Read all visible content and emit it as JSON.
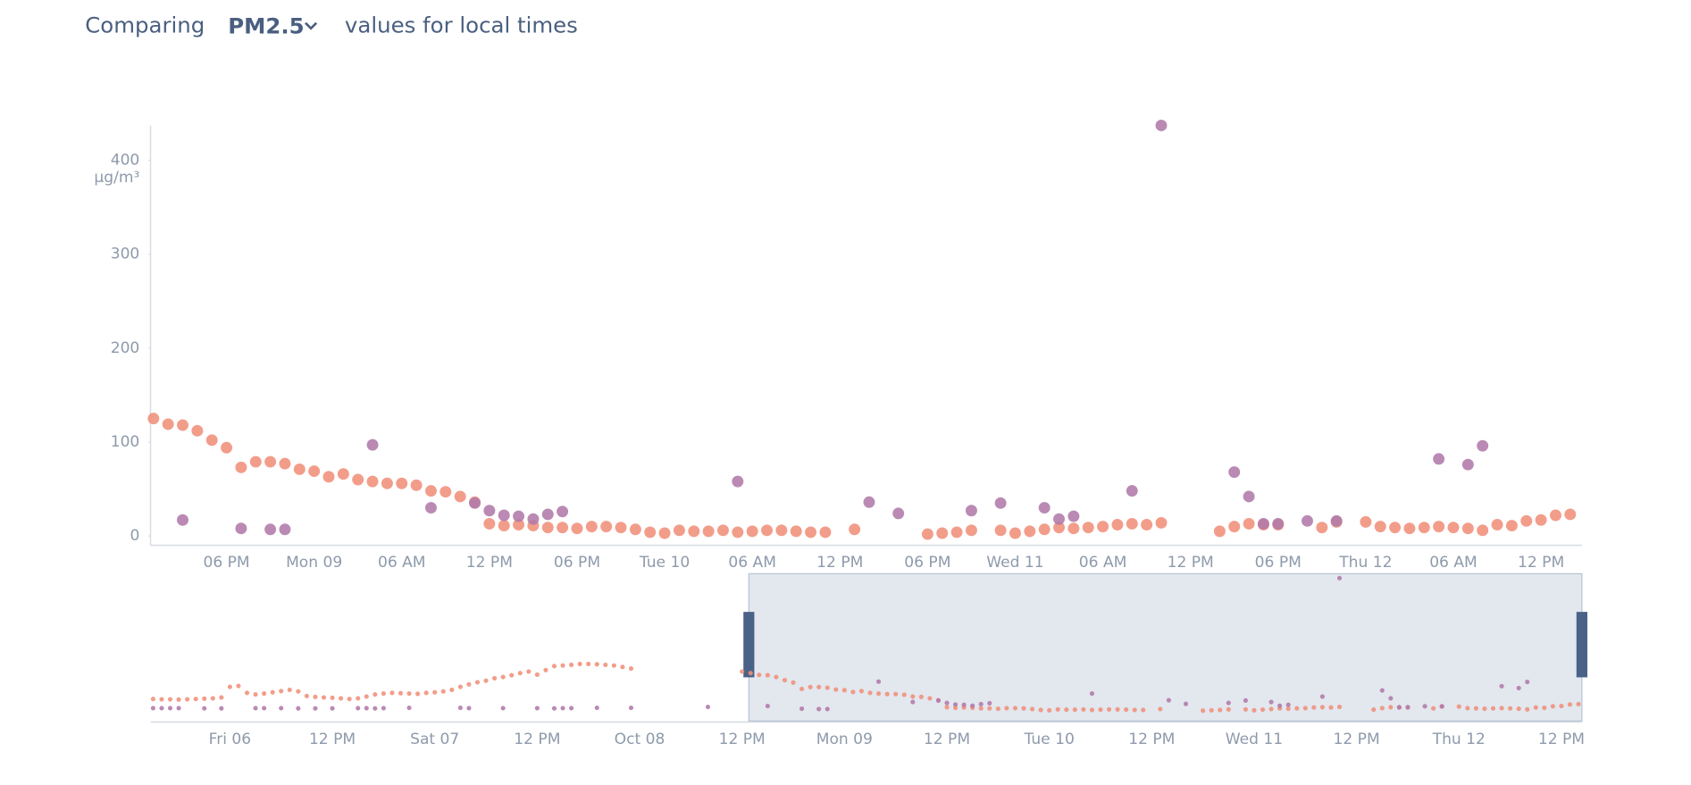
{
  "header": {
    "prefix": "Comparing",
    "pollutant": "PM2.5",
    "suffix": "values for local times"
  },
  "chart_data": [
    {
      "type": "scatter",
      "x": [
        13,
        14,
        15,
        16,
        17,
        18,
        19,
        20,
        21,
        22,
        23,
        24,
        25,
        26,
        27,
        28,
        29,
        30,
        31,
        32,
        33,
        34,
        35,
        36,
        37,
        38,
        39,
        40,
        41,
        42,
        43,
        44,
        45,
        46,
        47,
        48,
        49,
        50,
        51,
        52,
        53,
        54,
        55,
        56,
        57,
        58,
        59,
        60,
        61,
        62,
        63,
        64,
        65,
        66,
        67,
        68,
        69,
        70,
        71,
        72,
        73,
        74,
        75,
        76,
        77,
        78,
        79,
        80,
        81,
        82,
        83,
        84,
        85,
        86,
        87,
        88,
        89,
        90,
        91,
        92,
        93,
        94,
        95,
        96,
        97,
        98,
        99,
        100,
        101,
        102,
        103,
        104,
        105,
        106,
        107,
        108,
        109,
        110
      ],
      "series": [
        {
          "color": "#f0907a",
          "values": [
            125,
            119,
            118,
            112,
            102,
            94,
            73,
            79,
            79,
            77,
            71,
            69,
            63,
            66,
            60,
            58,
            56,
            56,
            54,
            48,
            47,
            42,
            36,
            13,
            11,
            12,
            11,
            9,
            9,
            8,
            10,
            10,
            9,
            7,
            4,
            3,
            6,
            5,
            5,
            6,
            4,
            5,
            6,
            6,
            5,
            4,
            4,
            null,
            7,
            null,
            null,
            null,
            null,
            2,
            3,
            4,
            6,
            null,
            6,
            3,
            5,
            7,
            9,
            8,
            9,
            10,
            12,
            13,
            12,
            14,
            null,
            null,
            null,
            5,
            10,
            13,
            12,
            12,
            null,
            null,
            9,
            15,
            null,
            15,
            10,
            9,
            8,
            9,
            10,
            9,
            8,
            6,
            12,
            11,
            16,
            17,
            22,
            23
          ]
        },
        {
          "color": "#b07aaa",
          "values": [
            null,
            null,
            17,
            null,
            null,
            null,
            8,
            null,
            7,
            7,
            null,
            null,
            null,
            null,
            null,
            97,
            null,
            null,
            null,
            30,
            null,
            null,
            35,
            27,
            22,
            21,
            18,
            23,
            26,
            null,
            null,
            null,
            null,
            null,
            null,
            null,
            null,
            null,
            null,
            null,
            58,
            null,
            null,
            null,
            null,
            null,
            null,
            null,
            null,
            36,
            null,
            24,
            null,
            null,
            null,
            null,
            27,
            null,
            35,
            null,
            null,
            30,
            18,
            21,
            null,
            null,
            null,
            48,
            null,
            437,
            null,
            null,
            null,
            null,
            68,
            42,
            13,
            13,
            null,
            16,
            null,
            16,
            null,
            null,
            null,
            null,
            null,
            null,
            82,
            null,
            76,
            96,
            null,
            null,
            null,
            null,
            null,
            null
          ]
        }
      ],
      "xlim": [
        12.8,
        110.8
      ],
      "xticks": [
        {
          "value": 18,
          "label": "06 PM"
        },
        {
          "value": 24,
          "label": "Mon 09"
        },
        {
          "value": 30,
          "label": "06 AM"
        },
        {
          "value": 36,
          "label": "12 PM"
        },
        {
          "value": 42,
          "label": "06 PM"
        },
        {
          "value": 48,
          "label": "Tue 10"
        },
        {
          "value": 54,
          "label": "06 AM"
        },
        {
          "value": 60,
          "label": "12 PM"
        },
        {
          "value": 66,
          "label": "06 PM"
        },
        {
          "value": 72,
          "label": "Wed 11"
        },
        {
          "value": 78,
          "label": "06 AM"
        },
        {
          "value": 84,
          "label": "12 PM"
        },
        {
          "value": 90,
          "label": "06 PM"
        },
        {
          "value": 96,
          "label": "Thu 12"
        },
        {
          "value": 102,
          "label": "06 AM"
        },
        {
          "value": 108,
          "label": "12 PM"
        }
      ],
      "ylim": [
        -10,
        437
      ],
      "yticks": [
        0,
        100,
        200,
        300,
        400
      ],
      "y_unit": "µg/m³"
    },
    {
      "type": "scatter",
      "x": [
        -57,
        -56,
        -55,
        -54,
        -53,
        -52,
        -51,
        -50,
        -49,
        -48,
        -47,
        -46,
        -45,
        -44,
        -43,
        -42,
        -41,
        -40,
        -39,
        -38,
        -37,
        -36,
        -35,
        -34,
        -33,
        -32,
        -31,
        -30,
        -29,
        -28,
        -27,
        -26,
        -25,
        -24,
        -23,
        -22,
        -21,
        -20,
        -19,
        -18,
        -17,
        -16,
        -15,
        -14,
        -13,
        -12,
        -11,
        -10,
        -9,
        -8,
        -7,
        -6,
        -5,
        -4,
        -3,
        -2,
        -1,
        0,
        1,
        2,
        3,
        4,
        5,
        6,
        7,
        8,
        9,
        10,
        11,
        12
      ],
      "series": [
        {
          "color": "#f0907a",
          "values": [
            40,
            39,
            39,
            38,
            39,
            40,
            41,
            42,
            45,
            80,
            83,
            60,
            55,
            58,
            62,
            66,
            70,
            65,
            50,
            47,
            45,
            44,
            42,
            40,
            42,
            48,
            55,
            58,
            60,
            59,
            58,
            57,
            60,
            62,
            65,
            70,
            80,
            88,
            95,
            100,
            108,
            112,
            118,
            125,
            130,
            120,
            135,
            148,
            150,
            152,
            155,
            155,
            154,
            152,
            150,
            145,
            140,
            null,
            null,
            null,
            null,
            null,
            null,
            null,
            null,
            null,
            null,
            null,
            null,
            130
          ]
        },
        {
          "color": "#b07aaa",
          "values": [
            10,
            10,
            10,
            10,
            null,
            null,
            9,
            null,
            9,
            null,
            null,
            null,
            10,
            10,
            null,
            10,
            null,
            9,
            null,
            9,
            null,
            9,
            null,
            null,
            10,
            10,
            9,
            10,
            null,
            null,
            11,
            null,
            null,
            null,
            null,
            null,
            11,
            10,
            null,
            null,
            null,
            10,
            null,
            null,
            null,
            10,
            null,
            9,
            10,
            10,
            null,
            null,
            11,
            null,
            null,
            null,
            11,
            null,
            null,
            null,
            null,
            null,
            null,
            null,
            null,
            14,
            null,
            null,
            null,
            null
          ]
        }
      ],
      "xlim": [
        -57.3,
        110.4
      ],
      "xticks": [
        {
          "value": -48,
          "label": "Fri 06"
        },
        {
          "value": -36,
          "label": "12 PM"
        },
        {
          "value": -24,
          "label": "Sat 07"
        },
        {
          "value": -12,
          "label": "12 PM"
        },
        {
          "value": 0,
          "label": "Oct 08"
        },
        {
          "value": 12,
          "label": "12 PM"
        },
        {
          "value": 24,
          "label": "Mon 09"
        },
        {
          "value": 36,
          "label": "12 PM"
        },
        {
          "value": 48,
          "label": "Tue 10"
        },
        {
          "value": 60,
          "label": "12 PM"
        },
        {
          "value": 72,
          "label": "Wed 11"
        },
        {
          "value": 84,
          "label": "12 PM"
        },
        {
          "value": 96,
          "label": "Thu 12"
        },
        {
          "value": 108,
          "label": "12 PM"
        }
      ]
    }
  ]
}
